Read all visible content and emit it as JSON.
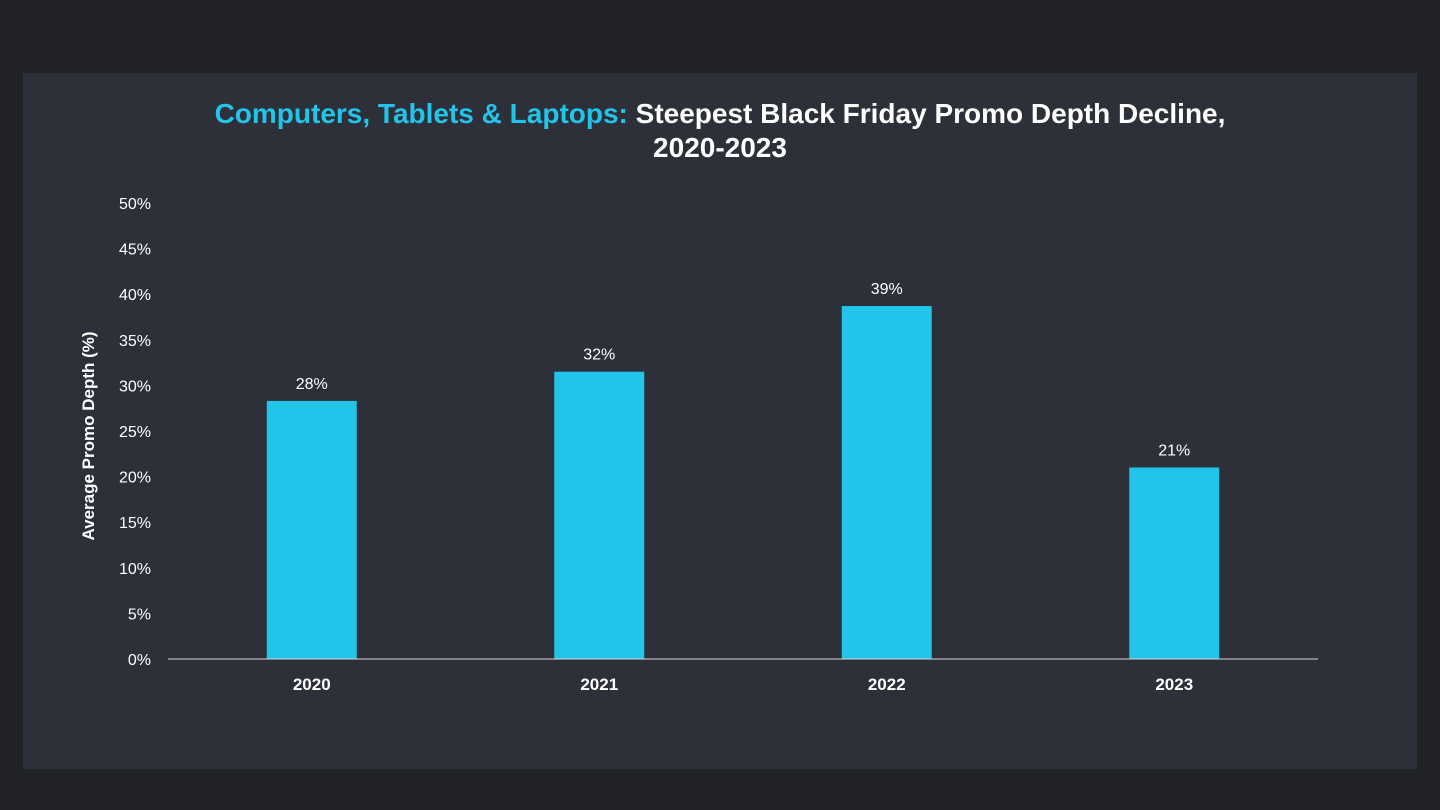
{
  "title": {
    "highlight": "Computers, Tablets & Laptops:",
    "rest": "Steepest Black Friday Promo Depth Decline,",
    "line2": "2020-2023"
  },
  "colors": {
    "page_background": "#212226",
    "slide_background": "#2d2f39",
    "bar": "#22c4ea",
    "accent": "#22c4ea",
    "text": "#ffffff"
  },
  "chart_data": {
    "type": "bar",
    "categories": [
      "2020",
      "2021",
      "2022",
      "2023"
    ],
    "values": [
      28.3,
      31.5,
      38.7,
      21.0
    ],
    "data_labels": [
      "28%",
      "32%",
      "39%",
      "21%"
    ],
    "ylabel": "Average Promo Depth (%)",
    "xlabel": "",
    "ylim": [
      0,
      50
    ],
    "yticks": [
      0,
      5,
      10,
      15,
      20,
      25,
      30,
      35,
      40,
      45,
      50
    ],
    "ytick_labels": [
      "0%",
      "5%",
      "10%",
      "15%",
      "20%",
      "25%",
      "30%",
      "35%",
      "40%",
      "45%",
      "50%"
    ],
    "grid": false,
    "legend": "none"
  }
}
